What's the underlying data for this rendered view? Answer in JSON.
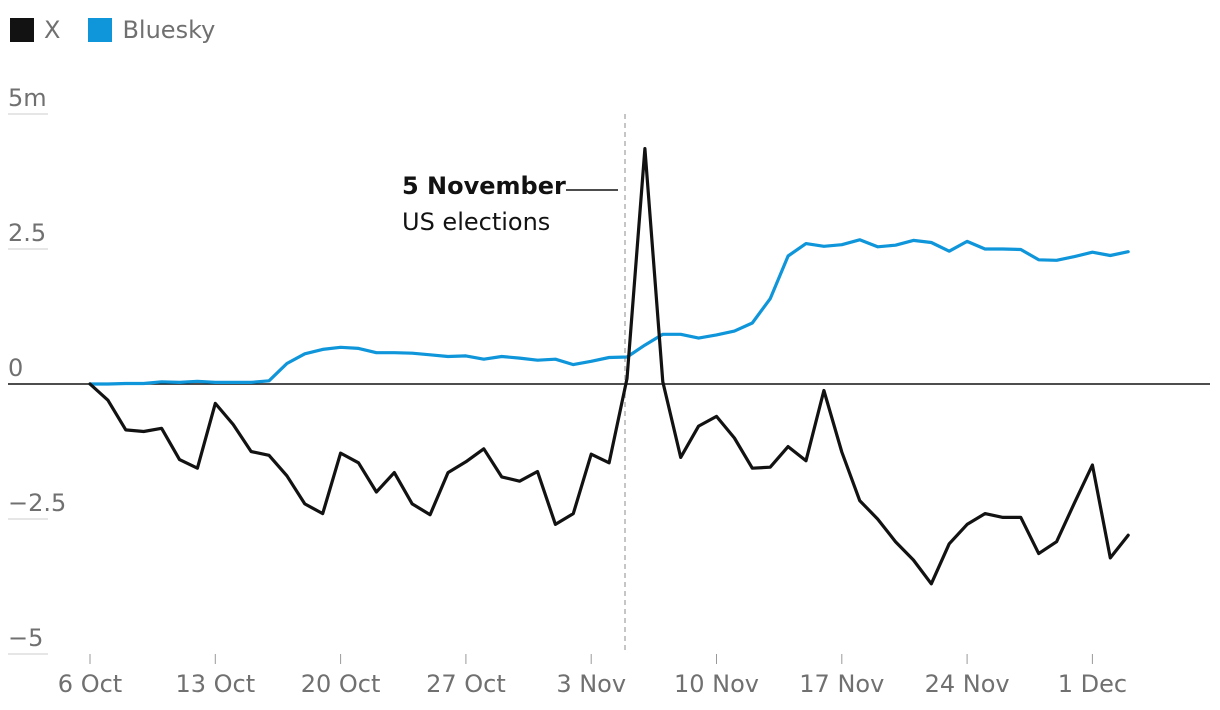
{
  "legend": [
    {
      "label": "X",
      "color": "#121212"
    },
    {
      "label": "Bluesky",
      "color": "#0f95d9"
    }
  ],
  "chart_data": {
    "type": "line",
    "ylim": [
      -5,
      5
    ],
    "yticks": [
      {
        "value": 5,
        "label": "5m"
      },
      {
        "value": 2.5,
        "label": "2.5"
      },
      {
        "value": 0,
        "label": "0"
      },
      {
        "value": -2.5,
        "label": "−2.5"
      },
      {
        "value": -5,
        "label": "−5"
      }
    ],
    "xticks": [
      "6 Oct",
      "13 Oct",
      "20 Oct",
      "27 Oct",
      "3 Nov",
      "10 Nov",
      "17 Nov",
      "24 Nov",
      "1 Dec"
    ],
    "x_start": "2024-10-06",
    "x_end": "2024-12-03",
    "annotation": {
      "date": "2024-11-05",
      "title": "5 November",
      "subtitle": "US elections"
    },
    "series": [
      {
        "name": "X",
        "color": "#121212",
        "values": [
          0,
          -0.3,
          -0.85,
          -0.88,
          -0.82,
          -1.4,
          -1.56,
          -0.36,
          -0.75,
          -1.25,
          -1.32,
          -1.7,
          -2.22,
          -2.4,
          -1.28,
          -1.46,
          -2.0,
          -1.64,
          -2.22,
          -2.42,
          -1.64,
          -1.44,
          -1.2,
          -1.72,
          -1.8,
          -1.62,
          -2.6,
          -2.4,
          -1.3,
          -1.46,
          0.1,
          4.36,
          0.04,
          -1.36,
          -0.78,
          -0.6,
          -1.0,
          -1.56,
          -1.54,
          -1.16,
          -1.42,
          -0.12,
          -1.26,
          -2.16,
          -2.5,
          -2.92,
          -3.26,
          -3.7,
          -2.96,
          -2.6,
          -2.4,
          -2.47,
          -2.47,
          -3.14,
          -2.92,
          -2.2,
          -1.5,
          -3.22,
          -2.8
        ]
      },
      {
        "name": "Bluesky",
        "color": "#0f95d9",
        "values": [
          0,
          0,
          0.01,
          0.01,
          0.04,
          0.03,
          0.05,
          0.03,
          0.03,
          0.03,
          0.06,
          0.38,
          0.56,
          0.64,
          0.68,
          0.66,
          0.58,
          0.58,
          0.57,
          0.54,
          0.51,
          0.52,
          0.46,
          0.51,
          0.48,
          0.44,
          0.46,
          0.36,
          0.42,
          0.49,
          0.5,
          0.72,
          0.92,
          0.92,
          0.85,
          0.91,
          0.98,
          1.13,
          1.58,
          2.37,
          2.6,
          2.55,
          2.58,
          2.67,
          2.54,
          2.57,
          2.66,
          2.62,
          2.46,
          2.64,
          2.5,
          2.5,
          2.49,
          2.3,
          2.29,
          2.36,
          2.44,
          2.38,
          2.45
        ]
      }
    ]
  }
}
